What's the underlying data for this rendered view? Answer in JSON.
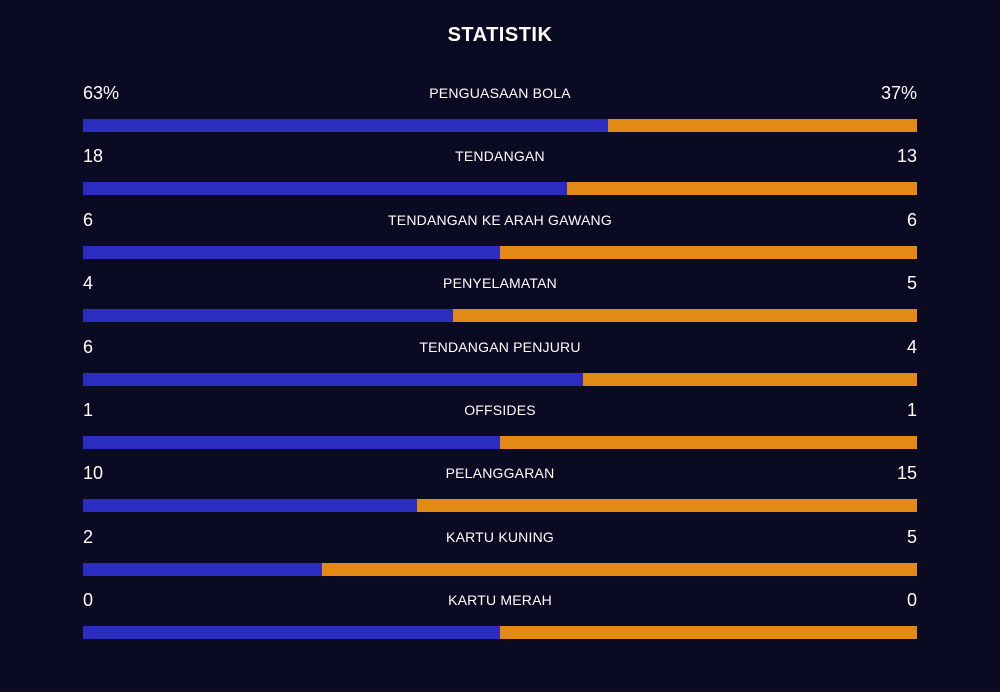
{
  "title": "STATISTIK",
  "colors": {
    "background": "#0a0a23",
    "home": "#2b2cc0",
    "away": "#e38a14",
    "text": "#ffffff"
  },
  "stats": [
    {
      "label": "PENGUASAAN BOLA",
      "home": "63%",
      "away": "37%",
      "home_share": 0.63
    },
    {
      "label": "TENDANGAN",
      "home": "18",
      "away": "13",
      "home_share": 0.58
    },
    {
      "label": "TENDANGAN KE ARAH GAWANG",
      "home": "6",
      "away": "6",
      "home_share": 0.5
    },
    {
      "label": "PENYELAMATAN",
      "home": "4",
      "away": "5",
      "home_share": 0.444
    },
    {
      "label": "TENDANGAN PENJURU",
      "home": "6",
      "away": "4",
      "home_share": 0.6
    },
    {
      "label": "OFFSIDES",
      "home": "1",
      "away": "1",
      "home_share": 0.5
    },
    {
      "label": "PELANGGARAN",
      "home": "10",
      "away": "15",
      "home_share": 0.4
    },
    {
      "label": "KARTU KUNING",
      "home": "2",
      "away": "5",
      "home_share": 0.286
    },
    {
      "label": "KARTU MERAH",
      "home": "0",
      "away": "0",
      "home_share": 0.5
    }
  ]
}
